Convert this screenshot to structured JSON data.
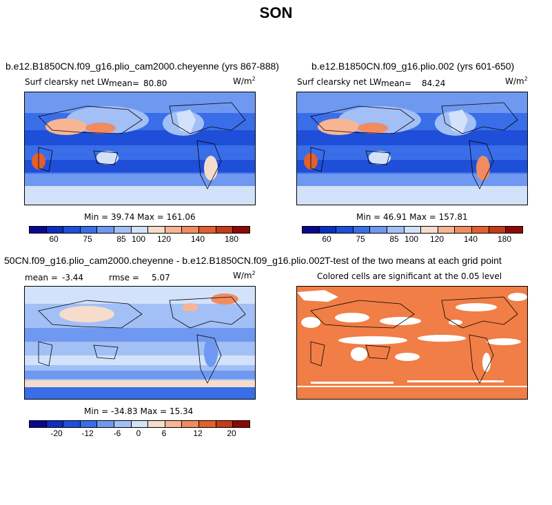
{
  "page": {
    "title": "SON"
  },
  "panels": {
    "top_left": {
      "title": "b.e12.B1850CN.f09_g16.plio_cam2000.cheyenne (yrs 867-888)",
      "variable": "Surf clearsky net LW",
      "mean_label": "mean=",
      "mean_value": "80.80",
      "units": "W/m",
      "units_exp": "2",
      "stats": "Min =  39.74 Max =  161.06"
    },
    "top_right": {
      "title": "b.e12.B1850CN.f09_g16.plio.002 (yrs 601-650)",
      "variable": "Surf clearsky net LW",
      "mean_label": "mean=",
      "mean_value": "84.24",
      "units": "W/m",
      "units_exp": "2",
      "stats": "Min =  46.91 Max =  157.81"
    },
    "bottom_left": {
      "title": "50CN.f09_g16.plio_cam2000.cheyenne - b.e12.B1850CN.f09_g16.plio.002",
      "mean_label": "mean =",
      "mean_value": "-3.44",
      "rmse_label": "rmse =",
      "rmse_value": "5.07",
      "units": "W/m",
      "units_exp": "2",
      "stats": "Min = -34.83 Max =  15.34"
    },
    "bottom_right": {
      "title": "T-test of the two means at each grid point",
      "subtitle": "Colored cells are significant at the 0.05 level"
    }
  },
  "colorbars": {
    "absolute": {
      "colors": [
        "#08088f",
        "#0b2fc0",
        "#1f4fd8",
        "#3a6ee8",
        "#6f98f0",
        "#a2bff6",
        "#d2e2fa",
        "#f6dccb",
        "#f7b594",
        "#f08c60",
        "#e0612f",
        "#c33b19",
        "#8b0a07"
      ],
      "tick_labels": [
        "60",
        "75",
        "85",
        "100",
        "120",
        "140",
        "180"
      ]
    },
    "difference": {
      "colors": [
        "#08088f",
        "#0b2fc0",
        "#1f4fd8",
        "#3a6ee8",
        "#6f98f0",
        "#a2bff6",
        "#d2e2fa",
        "#f6dccb",
        "#f7b594",
        "#f08c60",
        "#e0612f",
        "#c33b19",
        "#8b0a07"
      ],
      "tick_labels": [
        "-20",
        "-12",
        "-6",
        "0",
        "6",
        "12",
        "20"
      ]
    }
  },
  "map_colors": {
    "ocean_deep": "#1f4fd8",
    "ocean_mid": "#3a6ee8",
    "ocean_light": "#6f98f0",
    "pale": "#d2e2fa",
    "warm": "#f08c60",
    "hot": "#e0612f",
    "signif": "#f07e46"
  }
}
